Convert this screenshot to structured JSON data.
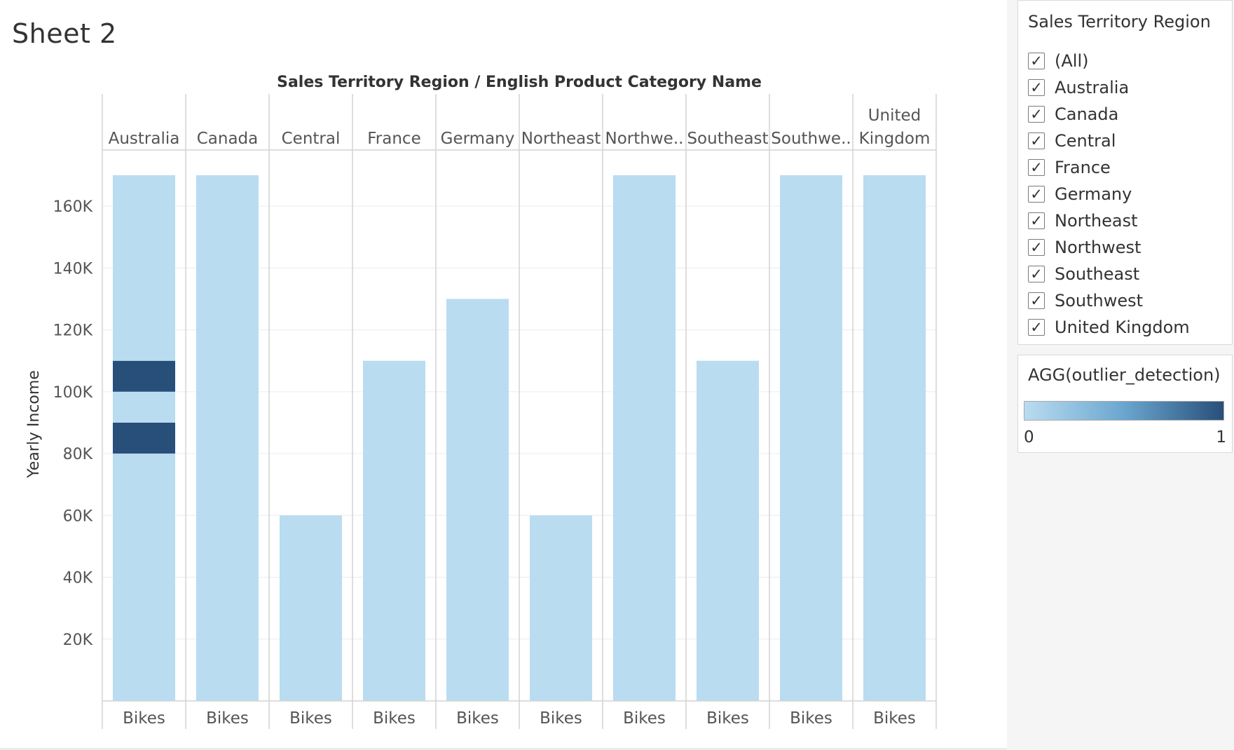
{
  "sheet": {
    "title": "Sheet 2"
  },
  "filter": {
    "title": "Sales Territory Region",
    "items": [
      {
        "label": "(All)",
        "checked": true
      },
      {
        "label": "Australia",
        "checked": true
      },
      {
        "label": "Canada",
        "checked": true
      },
      {
        "label": "Central",
        "checked": true
      },
      {
        "label": "France",
        "checked": true
      },
      {
        "label": "Germany",
        "checked": true
      },
      {
        "label": "Northeast",
        "checked": true
      },
      {
        "label": "Northwest",
        "checked": true
      },
      {
        "label": "Southeast",
        "checked": true
      },
      {
        "label": "Southwest",
        "checked": true
      },
      {
        "label": "United Kingdom",
        "checked": true
      }
    ],
    "check_glyph": "✓"
  },
  "legend": {
    "title": "AGG(outlier_detection)",
    "min_label": "0",
    "max_label": "1",
    "color_low": "#b9dcf0",
    "color_mid": "#6aa6cf",
    "color_high": "#284f7a"
  },
  "chart_data": {
    "type": "bar",
    "header_title": "Sales Territory Region  /  English Product Category Name",
    "ylabel": "Yearly Income",
    "ylim": [
      0,
      170000
    ],
    "yticks": [
      20000,
      40000,
      60000,
      80000,
      100000,
      120000,
      140000,
      160000
    ],
    "ytick_labels": [
      "20K",
      "40K",
      "60K",
      "80K",
      "100K",
      "120K",
      "140K",
      "160K"
    ],
    "grid": true,
    "regions": [
      {
        "name": "Australia",
        "display": [
          "Australia"
        ],
        "category": "Bikes",
        "max": 170000,
        "segments": [
          {
            "from": 0,
            "to": 80000,
            "outlier": 0
          },
          {
            "from": 80000,
            "to": 90000,
            "outlier": 1
          },
          {
            "from": 90000,
            "to": 100000,
            "outlier": 0
          },
          {
            "from": 100000,
            "to": 110000,
            "outlier": 1
          },
          {
            "from": 110000,
            "to": 170000,
            "outlier": 0
          }
        ]
      },
      {
        "name": "Canada",
        "display": [
          "Canada"
        ],
        "category": "Bikes",
        "max": 170000,
        "segments": [
          {
            "from": 0,
            "to": 170000,
            "outlier": 0
          }
        ]
      },
      {
        "name": "Central",
        "display": [
          "Central"
        ],
        "category": "Bikes",
        "max": 60000,
        "segments": [
          {
            "from": 0,
            "to": 60000,
            "outlier": 0
          }
        ]
      },
      {
        "name": "France",
        "display": [
          "France"
        ],
        "category": "Bikes",
        "max": 110000,
        "segments": [
          {
            "from": 0,
            "to": 110000,
            "outlier": 0
          }
        ]
      },
      {
        "name": "Germany",
        "display": [
          "Germany"
        ],
        "category": "Bikes",
        "max": 130000,
        "segments": [
          {
            "from": 0,
            "to": 130000,
            "outlier": 0
          }
        ]
      },
      {
        "name": "Northeast",
        "display": [
          "Northeast"
        ],
        "category": "Bikes",
        "max": 60000,
        "segments": [
          {
            "from": 0,
            "to": 60000,
            "outlier": 0
          }
        ]
      },
      {
        "name": "Northwest",
        "display": [
          "Northwe.."
        ],
        "category": "Bikes",
        "max": 170000,
        "segments": [
          {
            "from": 0,
            "to": 170000,
            "outlier": 0
          }
        ]
      },
      {
        "name": "Southeast",
        "display": [
          "Southeast"
        ],
        "category": "Bikes",
        "max": 110000,
        "segments": [
          {
            "from": 0,
            "to": 110000,
            "outlier": 0
          }
        ]
      },
      {
        "name": "Southwest",
        "display": [
          "Southwe.."
        ],
        "category": "Bikes",
        "max": 170000,
        "segments": [
          {
            "from": 0,
            "to": 170000,
            "outlier": 0
          }
        ]
      },
      {
        "name": "United Kingdom",
        "display": [
          "United",
          "Kingdom"
        ],
        "category": "Bikes",
        "max": 170000,
        "segments": [
          {
            "from": 0,
            "to": 170000,
            "outlier": 0
          }
        ]
      }
    ]
  }
}
